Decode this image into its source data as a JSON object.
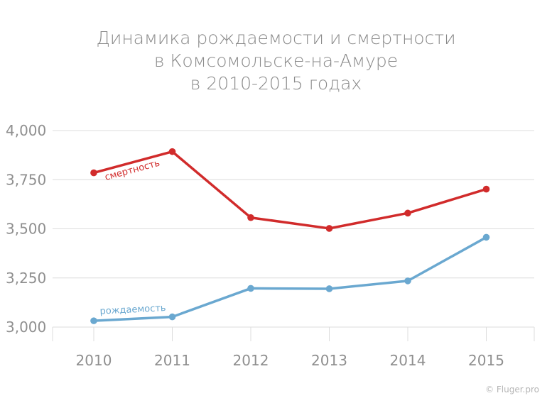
{
  "chart_data": {
    "type": "line",
    "title_lines": [
      "Динамика рождаемости и смертности",
      "в Комсомольске-на-Амуре",
      "в 2010-2015 годах"
    ],
    "xlabel": "",
    "ylabel": "",
    "categories": [
      "2010",
      "2011",
      "2012",
      "2013",
      "2014",
      "2015"
    ],
    "ylim": [
      3000,
      4000
    ],
    "yticks": [
      3000,
      3250,
      3500,
      3750,
      4000
    ],
    "ytick_labels": [
      "3,000",
      "3,250",
      "3,500",
      "3,750",
      "4,000"
    ],
    "grid": true,
    "series": [
      {
        "name": "смертность",
        "color": "#d12b2b",
        "values": [
          3785,
          3893,
          3557,
          3502,
          3580,
          3702
        ]
      },
      {
        "name": "рождаемость",
        "color": "#6aa8d0",
        "values": [
          3032,
          3052,
          3197,
          3195,
          3235,
          3457
        ]
      }
    ]
  },
  "credit": "© Fluger.pro"
}
